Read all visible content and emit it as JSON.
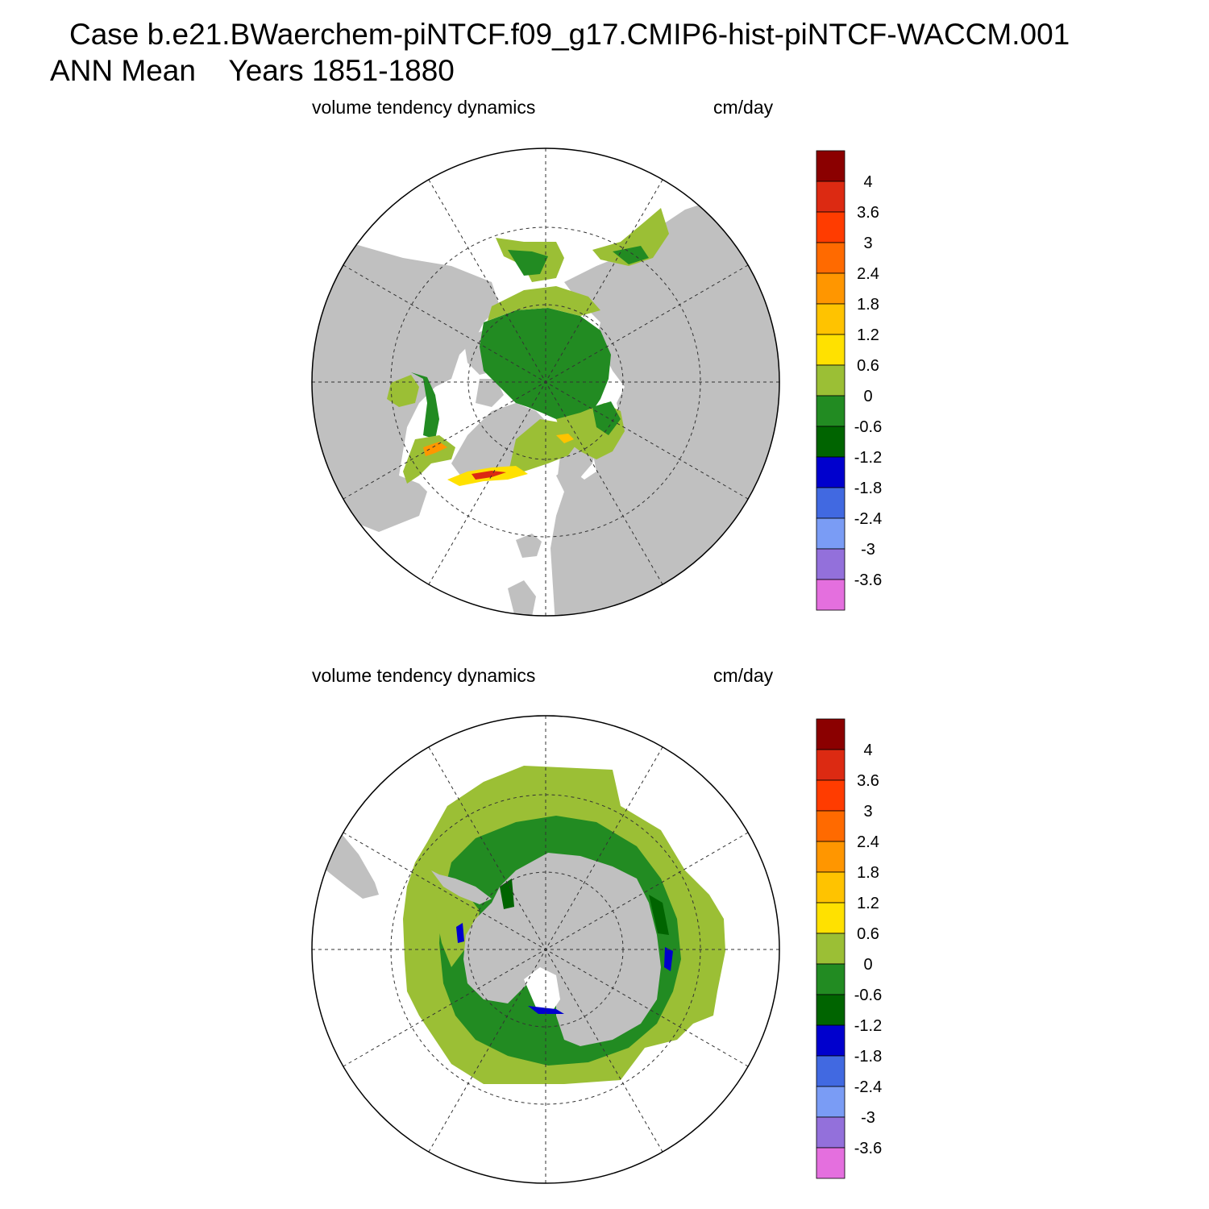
{
  "header": {
    "line1": "Case b.e21.BWaerchem-piNTCF.f09_g17.CMIP6-hist-piNTCF-WACCM.001",
    "line2_left": "ANN Mean",
    "line2_right": "Years 1851-1880"
  },
  "panels": [
    {
      "id": "arctic",
      "hemisphere": "north",
      "left_label": "volume tendency dynamics",
      "right_label": "cm/day"
    },
    {
      "id": "antarctic",
      "hemisphere": "south",
      "left_label": "volume tendency dynamics",
      "right_label": "cm/day"
    }
  ],
  "colorbar": {
    "labels": [
      "4",
      "3.6",
      "3",
      "2.4",
      "1.8",
      "1.2",
      "0.6",
      "0",
      "-0.6",
      "-1.2",
      "-1.8",
      "-2.4",
      "-3",
      "-3.6"
    ],
    "colors": [
      "#8b0000",
      "#dc2a12",
      "#ff3c00",
      "#ff6a00",
      "#ff9600",
      "#ffc300",
      "#ffe100",
      "#9bbf35",
      "#228b22",
      "#006400",
      "#0000cd",
      "#4169e1",
      "#7a9cf5",
      "#9370db",
      "#e46fde"
    ]
  },
  "colors": {
    "land": "#c0c0c0",
    "ocean": "#ffffff",
    "ice_positive": "#9bbf35",
    "ice_negative": "#228b22",
    "ice_dark": "#006400",
    "ice_blue": "#0000cd",
    "melt_yellow": "#ffe100",
    "melt_orange": "#ff9600",
    "melt_red": "#dc2a12"
  }
}
